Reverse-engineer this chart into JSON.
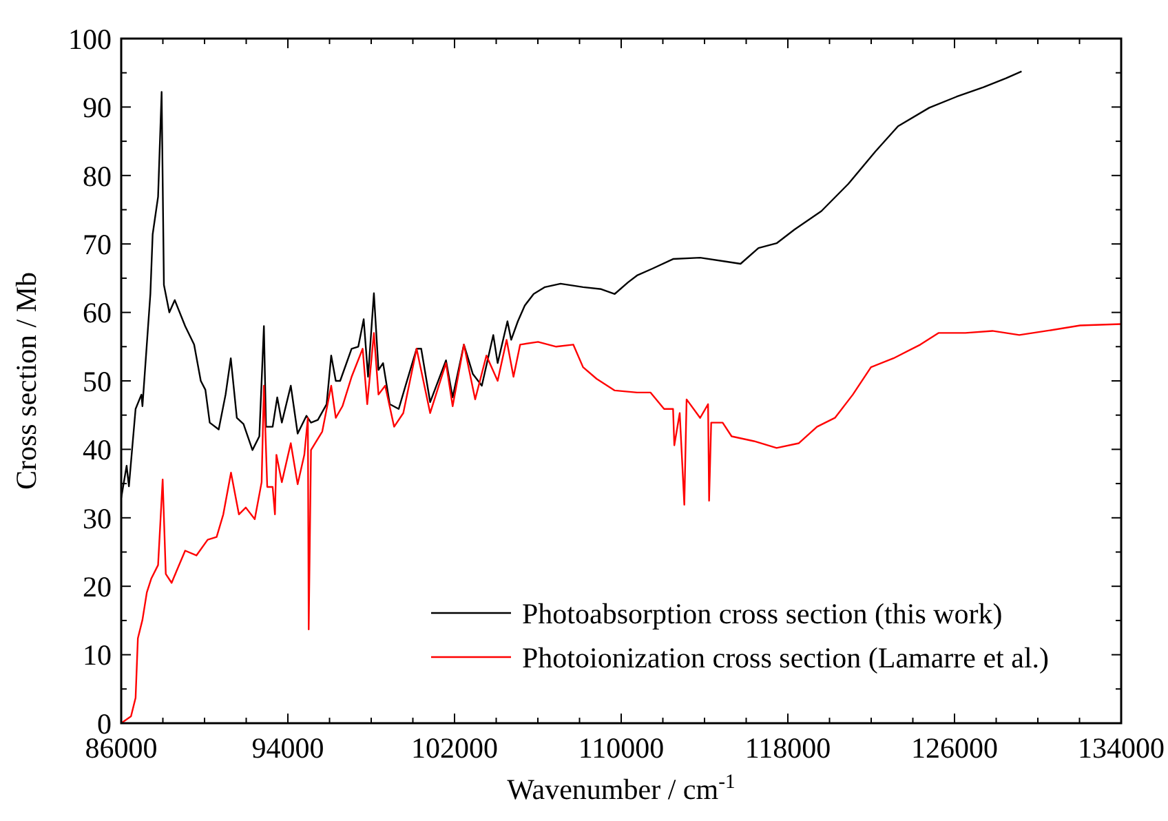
{
  "chart_data": {
    "type": "line",
    "xlabel": "Wavenumber / cm$^{-1}$",
    "ylabel": "Cross section / Mb",
    "xlim": [
      86000,
      134000
    ],
    "ylim": [
      0,
      100
    ],
    "xticks": [
      86000,
      {
        "value": 88000,
        "label": null
      },
      {
        "value": 90000,
        "label": null
      },
      {
        "value": 92000,
        "label": null
      },
      94000,
      {
        "value": 96000,
        "label": null
      },
      {
        "value": 98000,
        "label": null
      },
      {
        "value": 100000,
        "label": null
      },
      102000,
      {
        "value": 104000,
        "label": null
      },
      {
        "value": 106000,
        "label": null
      },
      {
        "value": 108000,
        "label": null
      },
      110000,
      {
        "value": 112000,
        "label": null
      },
      {
        "value": 114000,
        "label": null
      },
      {
        "value": 116000,
        "label": null
      },
      118000,
      {
        "value": 120000,
        "label": null
      },
      {
        "value": 122000,
        "label": null
      },
      {
        "value": 124000,
        "label": null
      },
      126000,
      {
        "value": 128000,
        "label": null
      },
      {
        "value": 130000,
        "label": null
      },
      {
        "value": 132000,
        "label": null
      },
      134000
    ],
    "yticks": [
      0,
      {
        "value": 5,
        "label": null
      },
      10,
      {
        "value": 15,
        "label": null
      },
      20,
      {
        "value": 25,
        "label": null
      },
      30,
      {
        "value": 35,
        "label": null
      },
      40,
      {
        "value": 45,
        "label": null
      },
      50,
      {
        "value": 55,
        "label": null
      },
      60,
      {
        "value": 65,
        "label": null
      },
      70,
      {
        "value": 75,
        "label": null
      },
      80,
      {
        "value": 85,
        "label": null
      },
      90,
      {
        "value": 95,
        "label": null
      },
      100
    ],
    "grid": false,
    "legend": "bottom",
    "marker": "none",
    "line_style": "solid",
    "series": [
      {
        "name": "Photoabsorption cross section (this work)",
        "color": "#000000",
        "x": [
          86000,
          86260,
          86370,
          86690,
          86970,
          87020,
          87400,
          87510,
          87770,
          87940,
          88050,
          88310,
          88570,
          89070,
          89500,
          89820,
          90040,
          90250,
          90680,
          91010,
          91260,
          91550,
          91870,
          92300,
          92630,
          92850,
          92950,
          93270,
          93490,
          93710,
          94140,
          94470,
          94890,
          95110,
          95440,
          95860,
          96080,
          96300,
          96510,
          97060,
          97380,
          97640,
          97850,
          98130,
          98350,
          98570,
          98890,
          99320,
          99650,
          100180,
          100400,
          100830,
          101590,
          101910,
          102450,
          102880,
          103310,
          103860,
          104070,
          104540,
          104720,
          105040,
          105370,
          105800,
          106340,
          107090,
          108170,
          109040,
          109690,
          110330,
          110760,
          111500,
          112490,
          113790,
          115080,
          115730,
          116590,
          117460,
          118320,
          119610,
          120910,
          122200,
          123290,
          124790,
          126090,
          127390,
          128470,
          129220
        ],
        "values": [
          32.9,
          37.6,
          34.6,
          45.9,
          48,
          46.3,
          62.7,
          71.4,
          76.9,
          92.2,
          64,
          60,
          61.8,
          58,
          55.3,
          50,
          48.7,
          43.9,
          42.9,
          48,
          53.3,
          44.6,
          43.7,
          39.9,
          41.9,
          58,
          43.3,
          43.3,
          47.6,
          43.9,
          49.3,
          42.3,
          44.9,
          43.9,
          44.3,
          46.6,
          53.7,
          50,
          50,
          54.7,
          55,
          59,
          50.6,
          62.8,
          51.6,
          52.6,
          46.6,
          45.9,
          49.3,
          54.7,
          54.7,
          46.9,
          53,
          47.6,
          55.3,
          51,
          49.3,
          56.7,
          52.6,
          58.7,
          56,
          58.7,
          61,
          62.7,
          63.7,
          64.2,
          63.7,
          63.4,
          62.7,
          64.4,
          65.4,
          66.4,
          67.8,
          68,
          67.4,
          67.1,
          69.4,
          70.1,
          72.1,
          74.8,
          78.8,
          83.5,
          87.2,
          89.9,
          91.5,
          92.9,
          94.2,
          95.2
        ]
      },
      {
        "name": "Photoionization cross section (Lamarre et al.)",
        "color": "#ff0000",
        "x": [
          86000,
          86470,
          86690,
          86800,
          87020,
          87230,
          87440,
          87770,
          87990,
          88140,
          88420,
          88640,
          89070,
          89610,
          90150,
          90580,
          90900,
          91270,
          91650,
          91980,
          92410,
          92740,
          92850,
          93010,
          93270,
          93380,
          93450,
          93710,
          94140,
          94470,
          94790,
          94960,
          95000,
          95110,
          95650,
          96080,
          96300,
          96620,
          97060,
          97590,
          97810,
          98130,
          98350,
          98670,
          99100,
          99540,
          100180,
          100830,
          101590,
          101910,
          102450,
          102990,
          103530,
          104070,
          104500,
          104830,
          105150,
          106010,
          106880,
          107700,
          108170,
          108820,
          109690,
          110760,
          111410,
          112060,
          112490,
          112550,
          112810,
          113030,
          113140,
          113790,
          114170,
          114220,
          114320,
          114870,
          115300,
          116370,
          117460,
          118530,
          119400,
          120260,
          121120,
          121990,
          123070,
          124360,
          125230,
          126520,
          127820,
          129110,
          130410,
          132030,
          134000
        ],
        "values": [
          0,
          1,
          3.7,
          12.4,
          15.1,
          19.1,
          21.1,
          23.1,
          35.6,
          21.8,
          20.5,
          22.1,
          25.2,
          24.5,
          26.8,
          27.2,
          30.5,
          36.6,
          30.5,
          31.5,
          29.8,
          35.2,
          49.3,
          34.5,
          34.5,
          30.5,
          39.2,
          35.2,
          40.9,
          34.9,
          39.2,
          44.6,
          13.7,
          39.9,
          42.6,
          49.3,
          44.6,
          46.3,
          50.6,
          54.7,
          46.6,
          57,
          48,
          49.3,
          43.3,
          45.3,
          54.7,
          45.3,
          52.6,
          46.3,
          55.3,
          47.3,
          53.7,
          50,
          56,
          50.6,
          55.3,
          55.7,
          55,
          55.3,
          52,
          50.3,
          48.6,
          48.3,
          48.3,
          45.9,
          45.9,
          40.6,
          45.3,
          31.9,
          47.3,
          44.6,
          46.6,
          32.5,
          43.9,
          43.9,
          41.9,
          41.2,
          40.2,
          40.9,
          43.3,
          44.6,
          48,
          52,
          53.3,
          55.3,
          57,
          57,
          57.3,
          56.7,
          57.3,
          58.1,
          58.3
        ]
      }
    ]
  }
}
